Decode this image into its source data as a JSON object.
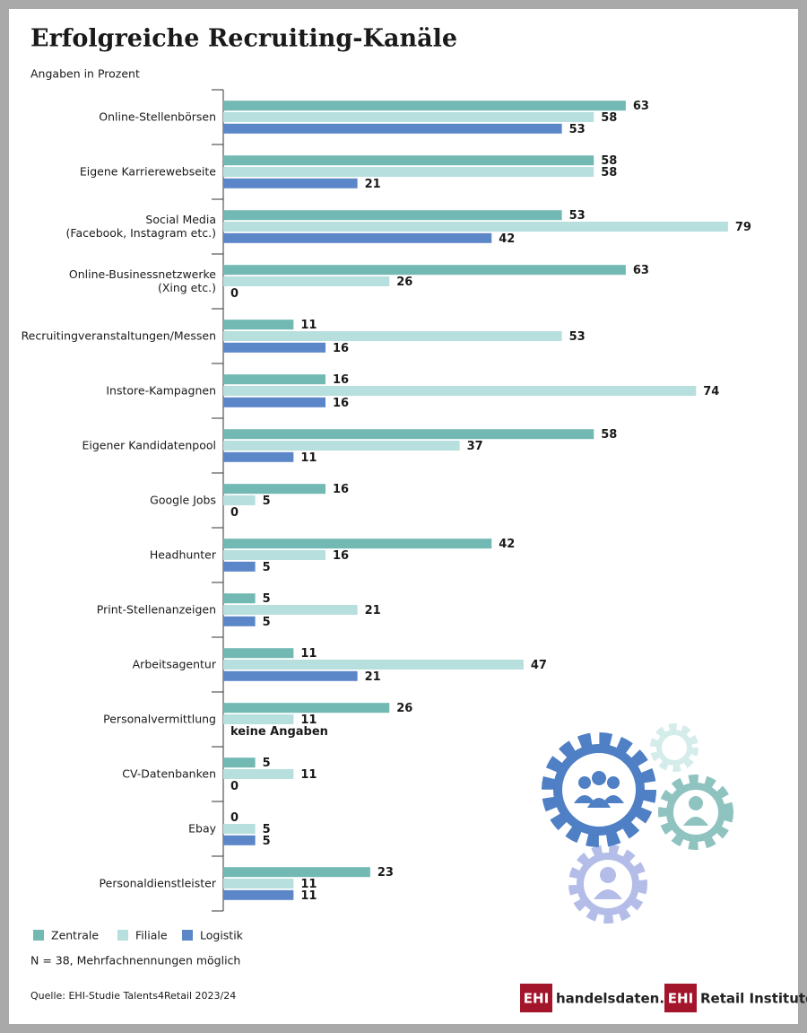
{
  "chart_data": {
    "type": "bar",
    "orientation": "horizontal",
    "title": "Erfolgreiche Recruiting-Kanäle",
    "subtitle": "Angaben in Prozent",
    "categories": [
      "Online-Stellenbörsen",
      "Eigene Karrierewebseite",
      "Social Media\n(Facebook, Instagram etc.)",
      "Online-Businessnetzwerke\n(Xing etc.)",
      "Recruitingveranstaltungen/Messen",
      "Instore-Kampagnen",
      "Eigener Kandidatenpool",
      "Google Jobs",
      "Headhunter",
      "Print-Stellenanzeigen",
      "Arbeitsagentur",
      "Personalvermittlung",
      "CV-Datenbanken",
      "Ebay",
      "Personaldienstleister"
    ],
    "series": [
      {
        "name": "Zentrale",
        "color": "#72b8b3",
        "values": [
          63,
          58,
          53,
          63,
          11,
          16,
          58,
          16,
          42,
          5,
          11,
          26,
          5,
          0,
          23
        ]
      },
      {
        "name": "Filiale",
        "color": "#b6dfdd",
        "values": [
          58,
          58,
          79,
          26,
          53,
          74,
          37,
          5,
          16,
          21,
          47,
          11,
          11,
          5,
          11
        ]
      },
      {
        "name": "Logistik",
        "color": "#5b86c8",
        "values": [
          53,
          21,
          42,
          0,
          16,
          16,
          11,
          0,
          5,
          5,
          21,
          null,
          0,
          5,
          11
        ],
        "value_labels": [
          "53",
          "21",
          "42",
          "0",
          "16",
          "16",
          "11",
          "0",
          "5",
          "5",
          "21",
          "keine Angaben",
          "0",
          "5",
          "11"
        ]
      }
    ],
    "xlim": [
      0,
      80
    ],
    "note": "N = 38, Mehrfachnennungen möglich",
    "source": "Quelle: EHI-Studie Talents4Retail 2023/24",
    "logos": [
      {
        "mark": "EHI",
        "text": "handelsdaten.de"
      },
      {
        "mark": "EHI",
        "text": "Retail Institute®"
      }
    ]
  }
}
